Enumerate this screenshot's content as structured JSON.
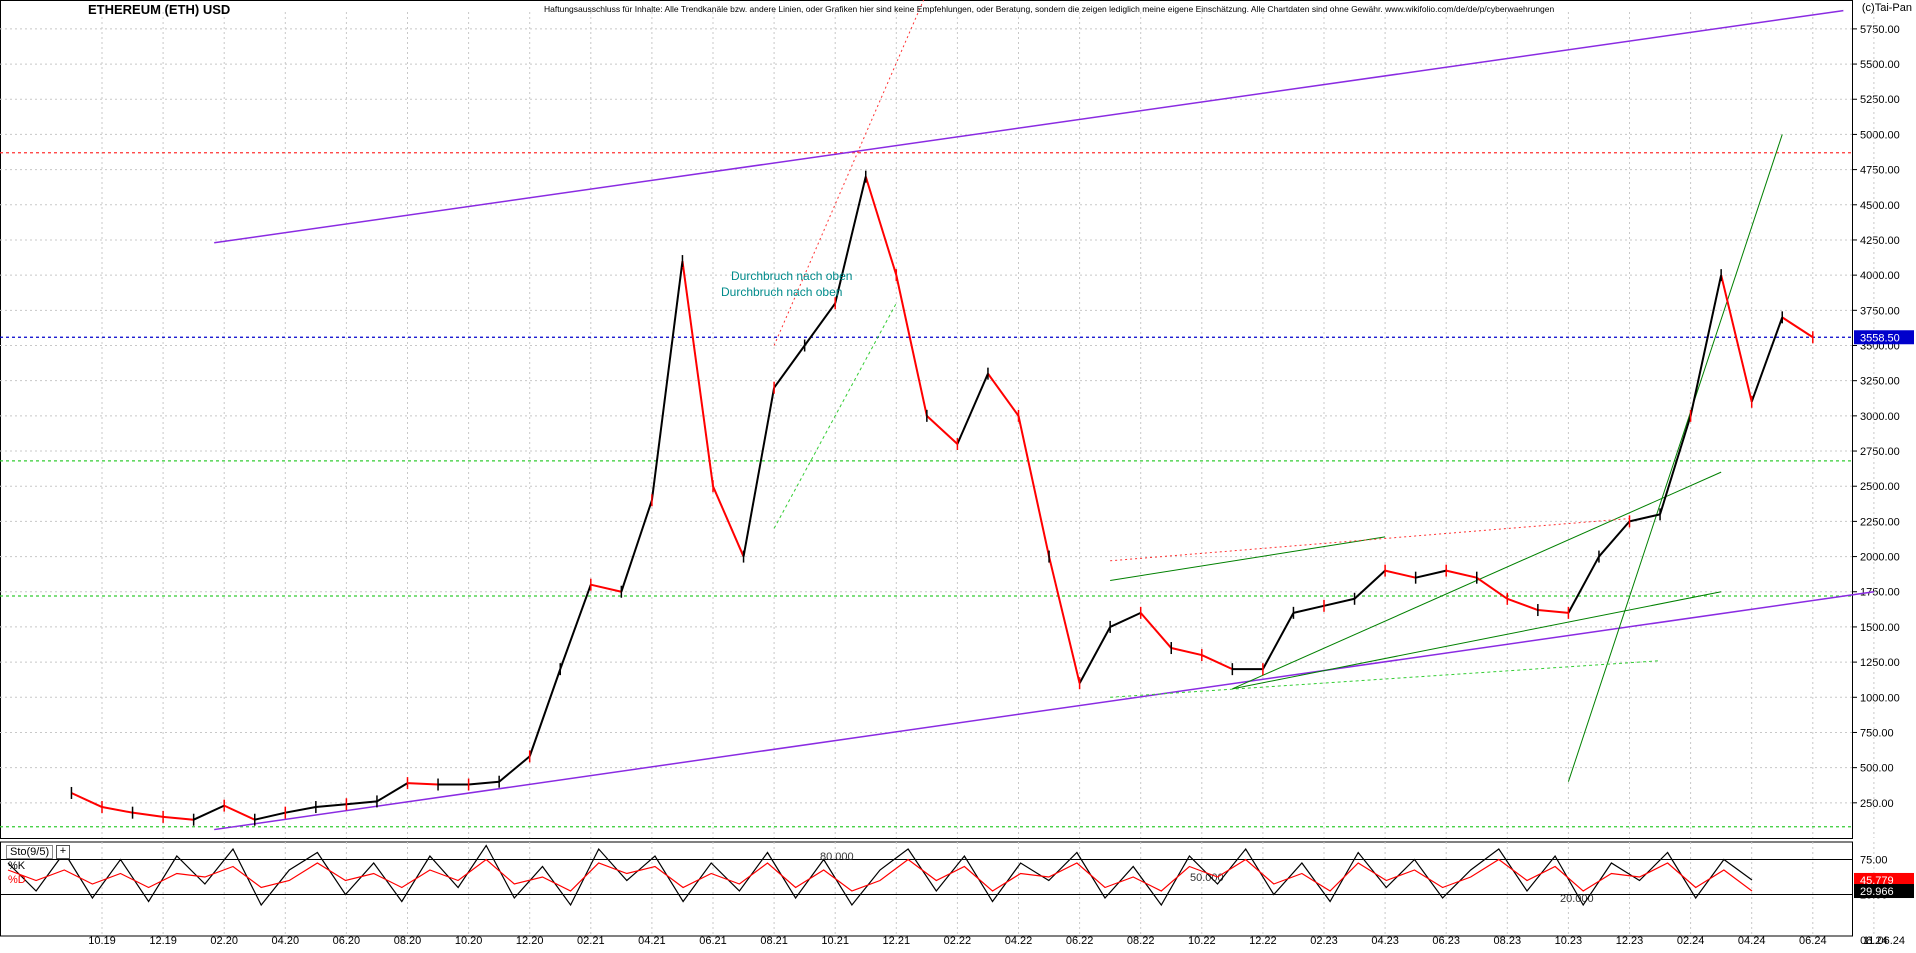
{
  "header": {
    "title": "ETHEREUM (ETH) USD",
    "disclaimer": "Haftungsausschluss für Inhalte: Alle Trendkanäle bzw. andere Linien, oder Grafiken hier sind keine Empfehlungen, oder Beratung, sondern die zeigen lediglich meine eigene Einschätzung. Alle Chartdaten sind ohne Gewähr. www.wikifolio.com/de/de/p/cyberwaehrungen",
    "copyright": "(c)Tai-Pan"
  },
  "indicator": {
    "label": "Sto(9/5)",
    "plus": "+",
    "k_label": "%K",
    "d_label": "%D"
  },
  "colors": {
    "price_down": "#ff0000",
    "price_up": "#000000",
    "channel": "#8a2be2",
    "trend_green": "#008000",
    "dashed_green": "#33cc33",
    "dashed_red": "#ff3333",
    "current_price_line": "#0000cc",
    "annotation_text": "#008b8b",
    "stoch_k": "#000000",
    "stoch_d": "#ff0000",
    "k_value_bg": "#ff0000",
    "d_value_bg": "#000000",
    "grid": "#c8c8c8"
  },
  "chart_data": [
    {
      "type": "line",
      "title": "ETHEREUM (ETH) USD",
      "y_axis_side": "right",
      "ylim": [
        0,
        5870
      ],
      "y_ticks": [
        "250.00",
        "500.00",
        "750.00",
        "1000.00",
        "1250.00",
        "1500.00",
        "1750.00",
        "2000.00",
        "2250.00",
        "2500.00",
        "2750.00",
        "3000.00",
        "3250.00",
        "3500.00",
        "3750.00",
        "4000.00",
        "4250.00",
        "4500.00",
        "4750.00",
        "5000.00",
        "5250.00",
        "5500.00",
        "5750.00"
      ],
      "x_ticks": [
        "10.19",
        "12.19",
        "02.20",
        "04.20",
        "06.20",
        "08.20",
        "10.20",
        "12.20",
        "02.21",
        "04.21",
        "06.21",
        "08.21",
        "10.21",
        "12.21",
        "02.22",
        "04.22",
        "06.22",
        "08.22",
        "10.22",
        "12.22",
        "02.23",
        "04.23",
        "06.23",
        "08.23",
        "10.23",
        "12.23",
        "02.24",
        "04.24",
        "06.24",
        "08.24"
      ],
      "x_end_label": "11.06.24",
      "grid": true,
      "series": [
        {
          "x": [
            "09.19",
            "10.19",
            "11.19",
            "12.19",
            "01.20",
            "02.20",
            "03.20",
            "04.20",
            "05.20",
            "06.20",
            "07.20",
            "08.20",
            "09.20",
            "10.20",
            "11.20",
            "12.20",
            "01.21",
            "02.21",
            "03.21",
            "04.21",
            "05.21",
            "06.21",
            "07.21",
            "08.21",
            "09.21",
            "10.21",
            "11.21",
            "12.21",
            "01.22",
            "02.22",
            "03.22",
            "04.22",
            "05.22",
            "06.22",
            "07.22",
            "08.22",
            "09.22",
            "10.22",
            "11.22",
            "12.22",
            "01.23",
            "02.23",
            "03.23",
            "04.23",
            "05.23",
            "06.23",
            "07.23",
            "08.23",
            "09.23",
            "10.23",
            "11.23",
            "12.23",
            "01.24",
            "02.24",
            "03.24",
            "04.24",
            "05.24",
            "06.24"
          ],
          "values": [
            320,
            220,
            180,
            150,
            130,
            230,
            130,
            180,
            220,
            240,
            260,
            390,
            380,
            380,
            400,
            580,
            1200,
            1800,
            1750,
            2400,
            4100,
            2500,
            2000,
            3200,
            3500,
            3800,
            4700,
            4000,
            3000,
            2800,
            3300,
            3000,
            2000,
            1100,
            1500,
            1600,
            1350,
            1300,
            1200,
            1200,
            1600,
            1650,
            1700,
            1900,
            1850,
            1900,
            1850,
            1700,
            1620,
            1600,
            2000,
            2250,
            2300,
            3000,
            4000,
            3100,
            3700,
            3558.5
          ]
        }
      ],
      "annotations": [
        {
          "text": "Durchbruch nach oben",
          "x": "06.21",
          "y": 4180
        },
        {
          "text": "Durchbruch nach oben",
          "x": "06.21",
          "y": 3850
        },
        {
          "text": "3558.50",
          "y": 3558.5,
          "kind": "current-price"
        }
      ],
      "trendlines": [
        {
          "name": "upper-channel",
          "color": "#8a2be2",
          "from": {
            "x": "02.20",
            "y": 4230
          },
          "to": {
            "x": "06.24+",
            "y": 5880
          }
        },
        {
          "name": "lower-channel",
          "color": "#8a2be2",
          "from": {
            "x": "02.20",
            "y": 60
          },
          "to": {
            "x": "08.24",
            "y": 1750
          }
        }
      ],
      "horizontal_levels": [
        {
          "y": 4870,
          "style": "dashed",
          "color": "#ff3333"
        },
        {
          "y": 3558.5,
          "style": "dashed",
          "color": "#0000cc"
        },
        {
          "y": 1720,
          "style": "dashed",
          "color": "#33cc33"
        },
        {
          "y": 2680,
          "style": "dashed",
          "color": "#33cc33"
        },
        {
          "y": 80,
          "style": "dashed",
          "color": "#33cc33"
        }
      ]
    },
    {
      "type": "line",
      "title": "Sto(9/5)",
      "ylim": [
        0,
        100
      ],
      "y_ticks": [
        "25.00",
        "50.00",
        "75.00"
      ],
      "levels": [
        {
          "label": "80.000",
          "y": 80
        },
        {
          "label": "50.000",
          "y": 50
        },
        {
          "label": "20.000",
          "y": 20
        }
      ],
      "series": [
        {
          "name": "%K",
          "values": [
            70,
            30,
            85,
            20,
            75,
            15,
            80,
            40,
            90,
            10,
            60,
            85,
            25,
            70,
            15,
            80,
            35,
            95,
            20,
            65,
            10,
            90,
            45,
            80,
            15,
            70,
            30,
            85,
            20,
            75,
            10,
            60,
            90,
            30,
            80,
            15,
            70,
            45,
            85,
            20,
            65,
            10,
            80,
            40,
            90,
            25,
            70,
            15,
            85,
            35,
            75,
            20,
            60,
            90,
            30,
            80,
            10,
            70,
            45,
            85,
            20,
            75,
            45.779
          ]
        },
        {
          "name": "%D",
          "values": [
            60,
            45,
            60,
            40,
            55,
            35,
            55,
            50,
            65,
            35,
            45,
            70,
            45,
            55,
            35,
            60,
            45,
            75,
            40,
            50,
            30,
            70,
            55,
            65,
            35,
            55,
            40,
            70,
            35,
            60,
            30,
            45,
            75,
            45,
            65,
            30,
            55,
            50,
            70,
            35,
            50,
            30,
            65,
            50,
            75,
            40,
            55,
            30,
            70,
            45,
            60,
            35,
            50,
            75,
            45,
            65,
            30,
            55,
            50,
            70,
            35,
            60,
            29.966
          ]
        }
      ],
      "current_values": {
        "k": "45.779",
        "d": "29.966"
      }
    }
  ]
}
